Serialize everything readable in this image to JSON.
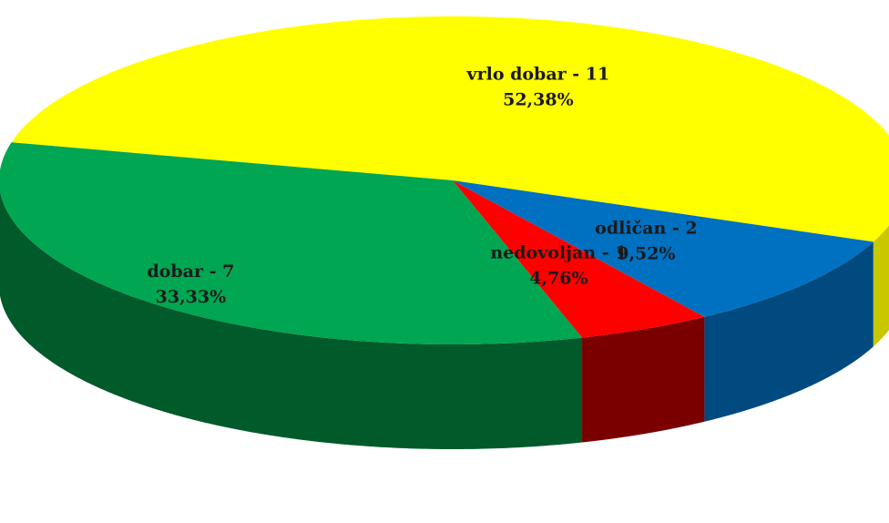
{
  "chart_data": {
    "type": "pie",
    "style": "3d",
    "title": "",
    "legend": "none",
    "slices": [
      {
        "label": "vrlo dobar - 11",
        "value": 11,
        "percent_label": "52,38%",
        "color": "#ffff00",
        "side_color": "#c8c800"
      },
      {
        "label": "dobar - 7",
        "value": 7,
        "percent_label": "33,33%",
        "color": "#00a651",
        "side_color": "#005a2a"
      },
      {
        "label": "nedovoljan - 1",
        "value": 1,
        "percent_label": "4,76%",
        "color": "#ff0000",
        "side_color": "#7a0000"
      },
      {
        "label": "odličan - 2",
        "value": 2,
        "percent_label": "9,52%",
        "color": "#0070c0",
        "side_color": "#004a80"
      }
    ]
  }
}
